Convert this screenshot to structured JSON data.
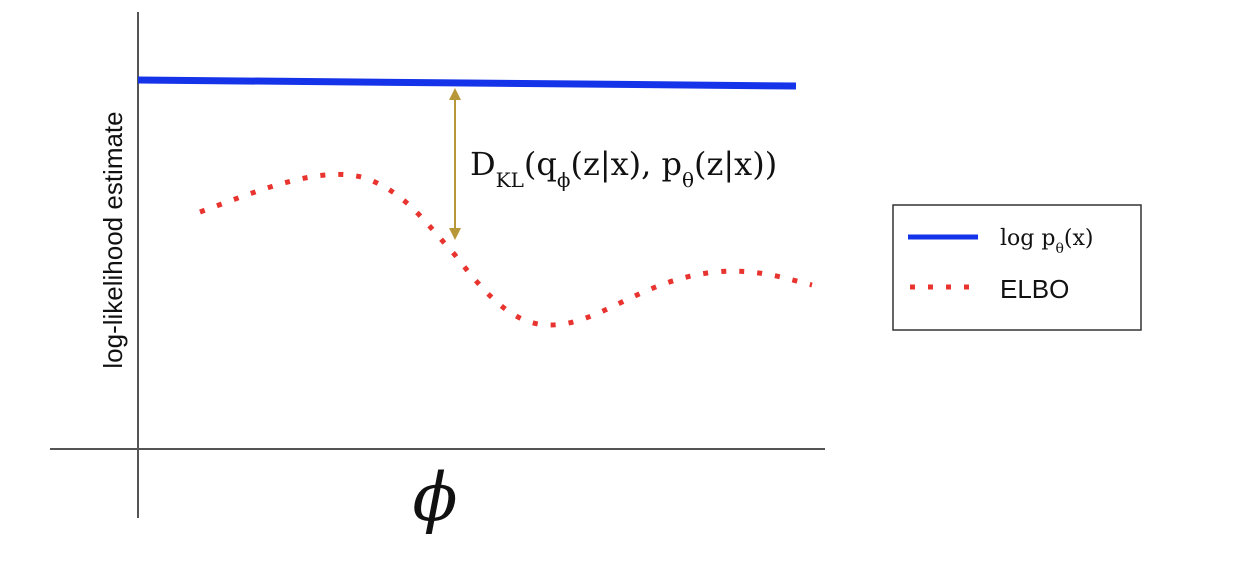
{
  "y_axis_label": "log-likelihood estimate",
  "x_axis_label": "ϕ",
  "annotation": [
    "D",
    "KL",
    "(q",
    "ϕ",
    "(z|x), p",
    "θ",
    "(z|x))"
  ],
  "legend": {
    "entries": [
      {
        "label": [
          "log p",
          "θ",
          "(x)"
        ]
      },
      {
        "label": [
          "ELBO"
        ]
      }
    ]
  }
}
